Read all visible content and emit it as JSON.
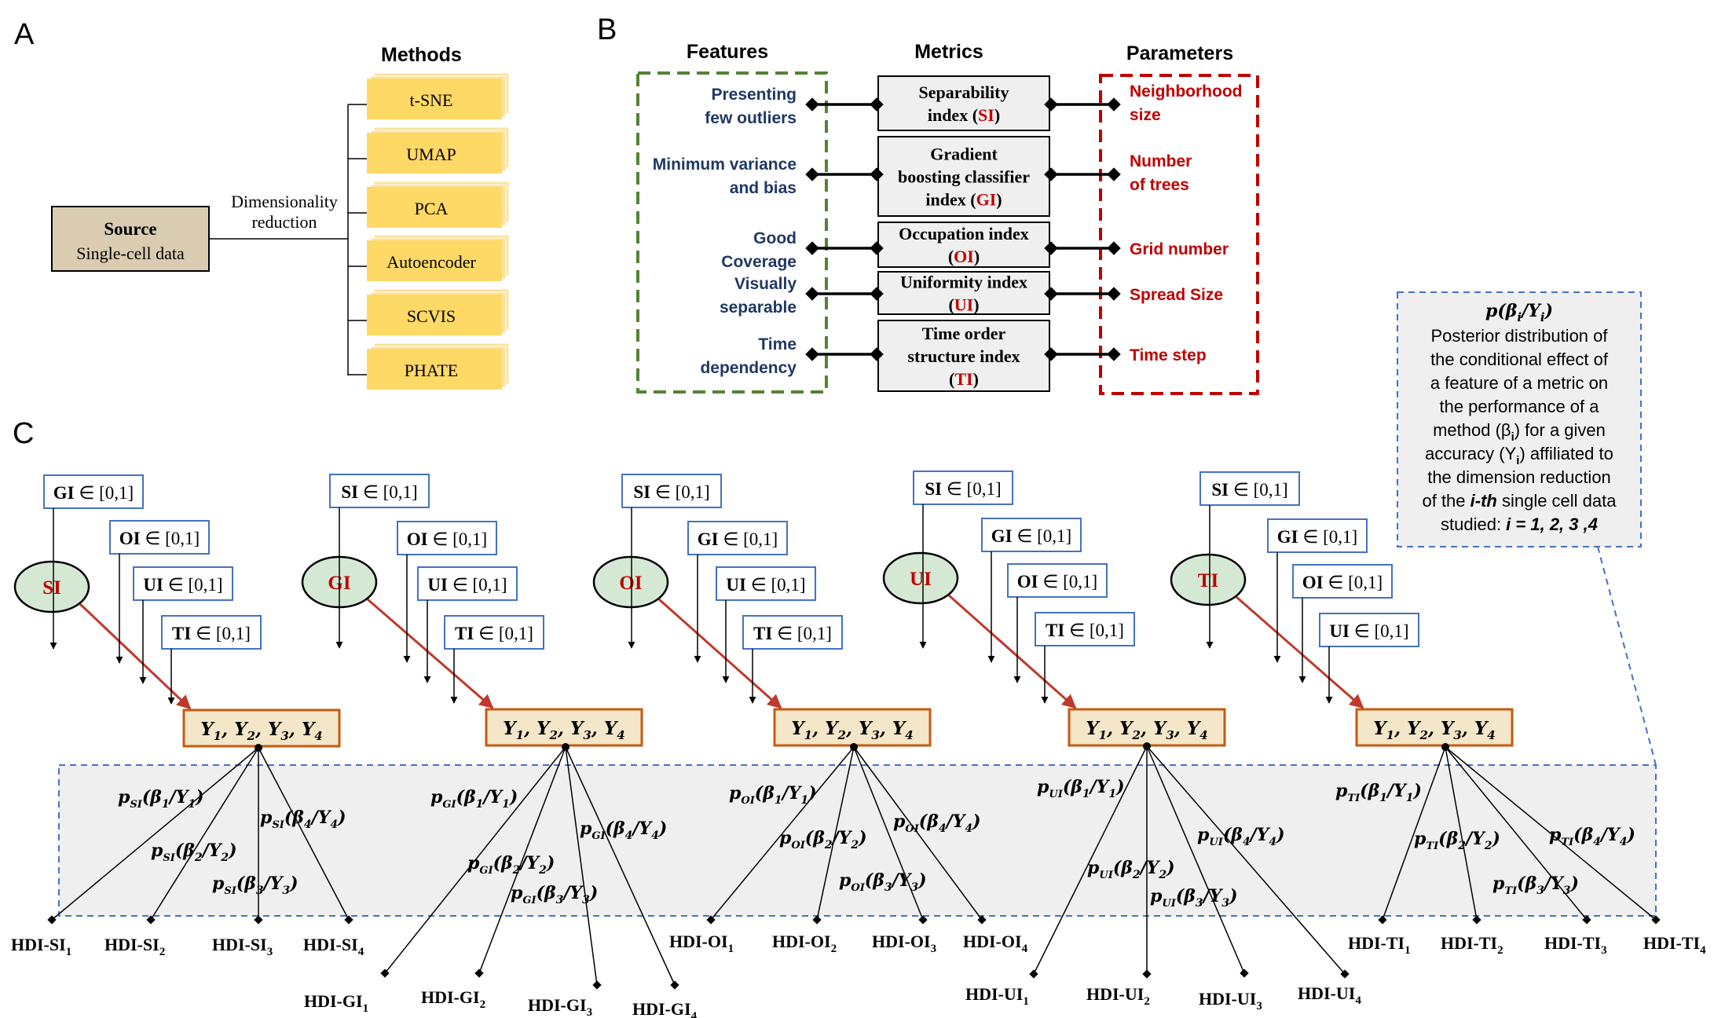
{
  "panel_a": {
    "label": "A",
    "methods_title": "Methods",
    "source_line1": "Source",
    "source_line2": "Single-cell data",
    "dr_line1": "Dimensionality",
    "dr_line2": "reduction",
    "methods": [
      "t-SNE",
      "UMAP",
      "PCA",
      "Autoencoder",
      "SCVIS",
      "PHATE"
    ]
  },
  "panel_b": {
    "label": "B",
    "features_title": "Features",
    "metrics_title": "Metrics",
    "parameters_title": "Parameters",
    "rows": [
      {
        "feature": [
          "Presenting",
          "few outliers"
        ],
        "metric": [
          "Separability",
          "index (",
          "SI",
          ")"
        ],
        "parameter": [
          "Neighborhood",
          "size"
        ]
      },
      {
        "feature": [
          "Minimum variance",
          "and bias"
        ],
        "metric": [
          "Gradient",
          "boosting classifier",
          "index (",
          "GI",
          ")"
        ],
        "parameter": [
          "Number",
          "of trees"
        ]
      },
      {
        "feature": [
          "Good",
          "Coverage"
        ],
        "metric": [
          "Occupation index",
          "(",
          "OI",
          ")"
        ],
        "parameter": [
          "Grid number"
        ]
      },
      {
        "feature": [
          "Visually",
          "separable"
        ],
        "metric": [
          "Uniformity index",
          "(",
          "UI",
          ")"
        ],
        "parameter": [
          "Spread Size"
        ]
      },
      {
        "feature": [
          "Time",
          "dependency"
        ],
        "metric": [
          "Time order",
          "structure index",
          "(",
          "TI",
          ")"
        ],
        "parameter": [
          "Time step"
        ]
      }
    ]
  },
  "panel_c": {
    "label": "C",
    "posterior_box": {
      "title": "p(β",
      "title_sub": "i",
      "title_mid": "/Y",
      "title_sub2": "i",
      "title_end": ")",
      "lines": [
        "Posterior distribution of",
        "the conditional effect of",
        "a feature of a metric on",
        "the performance of a",
        "method (β",
        "accuracy (Y",
        "the dimension reduction",
        "of the ",
        "studied: "
      ],
      "line5_end": ") for a given",
      "line6_end": ") affiliated to",
      "line8_italic": "i-th",
      "line8_end": " single cell data",
      "line9_italic": "i = 1, 2, 3 ,4",
      "sub_i": "i"
    },
    "y_box": {
      "Y": "Y",
      "subs": [
        "1",
        "2",
        "3",
        "4"
      ],
      "sep": ", "
    },
    "groups": [
      {
        "node": "SI",
        "inputs": [
          "GI ∈ [0,1]",
          "OI ∈ [0,1]",
          "UI ∈ [0,1]",
          "TI ∈ [0,1]"
        ],
        "p_sub": "SI",
        "outputs": [
          "HDI-SI",
          "HDI-SI",
          "HDI-SI",
          "HDI-SI"
        ]
      },
      {
        "node": "GI",
        "inputs": [
          "SI ∈ [0,1]",
          "OI ∈ [0,1]",
          "UI ∈ [0,1]",
          "TI ∈ [0,1]"
        ],
        "p_sub": "GI",
        "outputs": [
          "HDI-GI",
          "HDI-GI",
          "HDI-GI",
          "HDI-GI"
        ]
      },
      {
        "node": "OI",
        "inputs": [
          "SI ∈ [0,1]",
          "GI ∈ [0,1]",
          "UI ∈ [0,1]",
          "TI ∈ [0,1]"
        ],
        "p_sub": "OI",
        "outputs": [
          "HDI-OI",
          "HDI-OI",
          "HDI-OI",
          "HDI-OI"
        ]
      },
      {
        "node": "UI",
        "inputs": [
          "SI ∈ [0,1]",
          "GI ∈ [0,1]",
          "OI ∈ [0,1]",
          "TI ∈ [0,1]"
        ],
        "p_sub": "UI",
        "outputs": [
          "HDI-UI",
          "HDI-UI",
          "HDI-UI",
          "HDI-UI"
        ]
      },
      {
        "node": "TI",
        "inputs": [
          "SI ∈ [0,1]",
          "GI ∈ [0,1]",
          "OI ∈ [0,1]",
          "UI ∈ [0,1]"
        ],
        "p_sub": "TI",
        "outputs": [
          "HDI-TI",
          "HDI-TI",
          "HDI-TI",
          "HDI-TI"
        ]
      }
    ],
    "prob": {
      "p": "p",
      "beta": "β",
      "slash": "/Y",
      "open": "(",
      "close": ")"
    },
    "subscripts": [
      "1",
      "2",
      "3",
      "4"
    ]
  },
  "colors": {
    "method_box": "#ffd966",
    "method_shadow": "#fbe39a",
    "source_box": "#d9ccb0",
    "features_border": "#548235",
    "parameters_border": "#c00000",
    "metric_box": "#efefef",
    "feature_text": "#1f3864",
    "parameter_text": "#c00000",
    "red_text": "#c00000",
    "input_border": "#4472c4",
    "node_fill": "#d5e8d4",
    "y_box_fill": "#f4e6c8",
    "y_box_border": "#c55a11",
    "gray_band": "#efefef",
    "dashed_blue": "#4472c4",
    "arrow_red": "#c0392b"
  }
}
